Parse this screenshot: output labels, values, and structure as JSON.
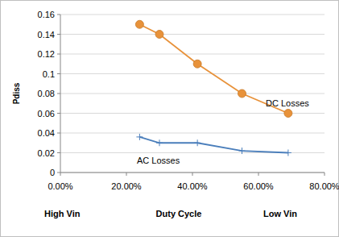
{
  "chart_data": {
    "type": "line",
    "x_label": "Duty Cycle",
    "y_label": "Pdiss",
    "annotations": [
      "High Vin",
      "Low Vin"
    ],
    "xlim": [
      0,
      80
    ],
    "xticks": [
      {
        "value": 0,
        "label": "0.00%"
      },
      {
        "value": 20,
        "label": "20.00%"
      },
      {
        "value": 40,
        "label": "40.00%"
      },
      {
        "value": 60,
        "label": "60.00%"
      },
      {
        "value": 80,
        "label": "80.00%"
      }
    ],
    "ylim": [
      0,
      0.16
    ],
    "yticks": [
      0,
      0.02,
      0.04,
      0.06,
      0.08,
      0.1,
      0.12,
      0.14,
      0.16
    ],
    "grid": true,
    "series": [
      {
        "name": "DC Losses",
        "color": "#e8923a",
        "marker": "circle",
        "line_style": "solid",
        "x": [
          24,
          30,
          41.5,
          55,
          69
        ],
        "values": [
          0.15,
          0.14,
          0.11,
          0.08,
          0.06
        ]
      },
      {
        "name": "AC Losses",
        "color": "#4a7ebb",
        "marker": "plus",
        "line_style": "solid",
        "x": [
          24,
          30,
          41.5,
          55,
          69
        ],
        "values": [
          0.036,
          0.03,
          0.03,
          0.022,
          0.02
        ]
      }
    ]
  }
}
